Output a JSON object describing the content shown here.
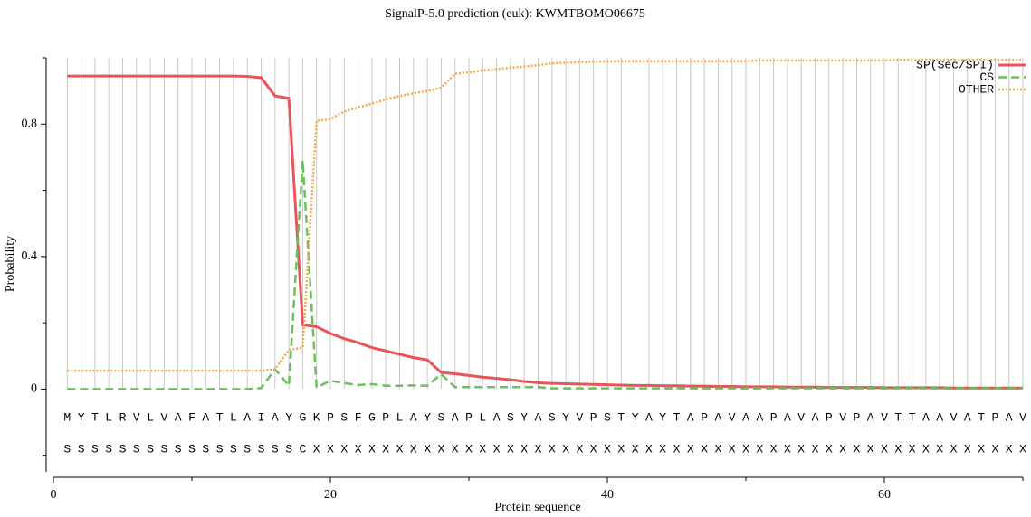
{
  "chart_data": {
    "type": "line",
    "title": "SignalP-5.0 prediction (euk):  KWMTBOMO06675",
    "xlabel": "Protein sequence",
    "ylabel": "Probability",
    "x": [
      1,
      2,
      3,
      4,
      5,
      6,
      7,
      8,
      9,
      10,
      11,
      12,
      13,
      14,
      15,
      16,
      17,
      18,
      19,
      20,
      21,
      22,
      23,
      24,
      25,
      26,
      27,
      28,
      29,
      30,
      31,
      32,
      33,
      34,
      35,
      36,
      37,
      38,
      39,
      40,
      41,
      42,
      43,
      44,
      45,
      46,
      47,
      48,
      49,
      50,
      51,
      52,
      53,
      54,
      55,
      56,
      57,
      58,
      59,
      60,
      61,
      62,
      63,
      64,
      65,
      66,
      67,
      68,
      69,
      70
    ],
    "sequence": [
      "M",
      "Y",
      "T",
      "L",
      "R",
      "V",
      "L",
      "V",
      "A",
      "F",
      "A",
      "T",
      "L",
      "A",
      "I",
      "A",
      "Y",
      "G",
      "K",
      "P",
      "S",
      "F",
      "G",
      "P",
      "L",
      "A",
      "Y",
      "S",
      "A",
      "P",
      "L",
      "A",
      "S",
      "Y",
      "A",
      "S",
      "Y",
      "V",
      "P",
      "S",
      "T",
      "Y",
      "A",
      "Y",
      "T",
      "A",
      "P",
      "A",
      "V",
      "A",
      "A",
      "P",
      "A",
      "V",
      "A",
      "P",
      "V",
      "P",
      "A",
      "V",
      "T",
      "T",
      "A",
      "A",
      "V",
      "A",
      "T",
      "P",
      "A",
      "V"
    ],
    "annotation": [
      "S",
      "S",
      "S",
      "S",
      "S",
      "S",
      "S",
      "S",
      "S",
      "S",
      "S",
      "S",
      "S",
      "S",
      "S",
      "S",
      "S",
      "C",
      "X",
      "X",
      "X",
      "X",
      "X",
      "X",
      "X",
      "X",
      "X",
      "X",
      "X",
      "X",
      "X",
      "X",
      "X",
      "X",
      "X",
      "X",
      "X",
      "X",
      "X",
      "X",
      "X",
      "X",
      "X",
      "X",
      "X",
      "X",
      "X",
      "X",
      "X",
      "X",
      "X",
      "X",
      "X",
      "X",
      "X",
      "X",
      "X",
      "X",
      "X",
      "X",
      "X",
      "X",
      "X",
      "X",
      "X",
      "X",
      "X",
      "X",
      "X",
      "X"
    ],
    "series": [
      {
        "name": "SP(Sec/SPI)",
        "color": "#e8545a",
        "dash": "solid",
        "values": [
          0.945,
          0.945,
          0.945,
          0.945,
          0.945,
          0.945,
          0.945,
          0.945,
          0.945,
          0.945,
          0.945,
          0.945,
          0.945,
          0.944,
          0.94,
          0.885,
          0.878,
          0.194,
          0.188,
          0.168,
          0.152,
          0.14,
          0.125,
          0.115,
          0.105,
          0.095,
          0.088,
          0.05,
          0.046,
          0.041,
          0.036,
          0.032,
          0.028,
          0.023,
          0.019,
          0.017,
          0.016,
          0.015,
          0.014,
          0.013,
          0.012,
          0.011,
          0.011,
          0.01,
          0.01,
          0.009,
          0.009,
          0.008,
          0.008,
          0.007,
          0.007,
          0.007,
          0.006,
          0.006,
          0.006,
          0.005,
          0.005,
          0.005,
          0.005,
          0.004,
          0.004,
          0.004,
          0.004,
          0.004,
          0.003,
          0.003,
          0.003,
          0.003,
          0.003,
          0.003
        ]
      },
      {
        "name": "CS",
        "color": "#6dbf5e",
        "dash": "dashed",
        "values": [
          0,
          0,
          0,
          0,
          0,
          0,
          0,
          0,
          0,
          0,
          0,
          0,
          0,
          0,
          0.003,
          0.06,
          0.01,
          0.69,
          0.005,
          0.025,
          0.018,
          0.012,
          0.015,
          0.01,
          0.01,
          0.011,
          0.01,
          0.045,
          0.006,
          0.006,
          0.006,
          0.006,
          0.006,
          0.006,
          0.006,
          0.002,
          0.002,
          0.002,
          0.002,
          0.002,
          0.002,
          0.002,
          0.002,
          0.002,
          0.002,
          0.002,
          0.002,
          0.002,
          0.002,
          0.002,
          0.002,
          0.002,
          0.002,
          0.002,
          0.002,
          0.002,
          0.002,
          0.002,
          0.002,
          0.002,
          0.002,
          0.002,
          0.002,
          0.002,
          0.002,
          0.002,
          0.002,
          0.002,
          0.002,
          0.002
        ]
      },
      {
        "name": "OTHER",
        "color": "#f5a84a",
        "dash": "dotted",
        "values": [
          0.055,
          0.055,
          0.055,
          0.055,
          0.055,
          0.055,
          0.055,
          0.055,
          0.055,
          0.055,
          0.055,
          0.055,
          0.055,
          0.055,
          0.055,
          0.06,
          0.118,
          0.125,
          0.81,
          0.815,
          0.838,
          0.85,
          0.862,
          0.875,
          0.884,
          0.893,
          0.9,
          0.91,
          0.952,
          0.956,
          0.962,
          0.966,
          0.97,
          0.974,
          0.978,
          0.983,
          0.985,
          0.987,
          0.988,
          0.989,
          0.99,
          0.99,
          0.99,
          0.99,
          0.99,
          0.99,
          0.99,
          0.99,
          0.99,
          0.99,
          0.992,
          0.992,
          0.992,
          0.992,
          0.992,
          0.992,
          0.992,
          0.992,
          0.992,
          0.992,
          0.994,
          0.994,
          0.994,
          0.994,
          0.994,
          0.994,
          0.994,
          0.994,
          0.994,
          0.994
        ]
      }
    ],
    "xlim": [
      0,
      70
    ],
    "xticks": [
      0,
      20,
      40,
      60
    ],
    "xminorticks": [
      10,
      30,
      50,
      70
    ],
    "ylim": [
      -0.25,
      1.0
    ],
    "yticks": [
      0,
      0.4,
      0.8
    ],
    "yminorticks": [
      -0.2,
      0.2,
      0.6,
      1.0
    ],
    "grid": true,
    "legend": "upper right"
  }
}
